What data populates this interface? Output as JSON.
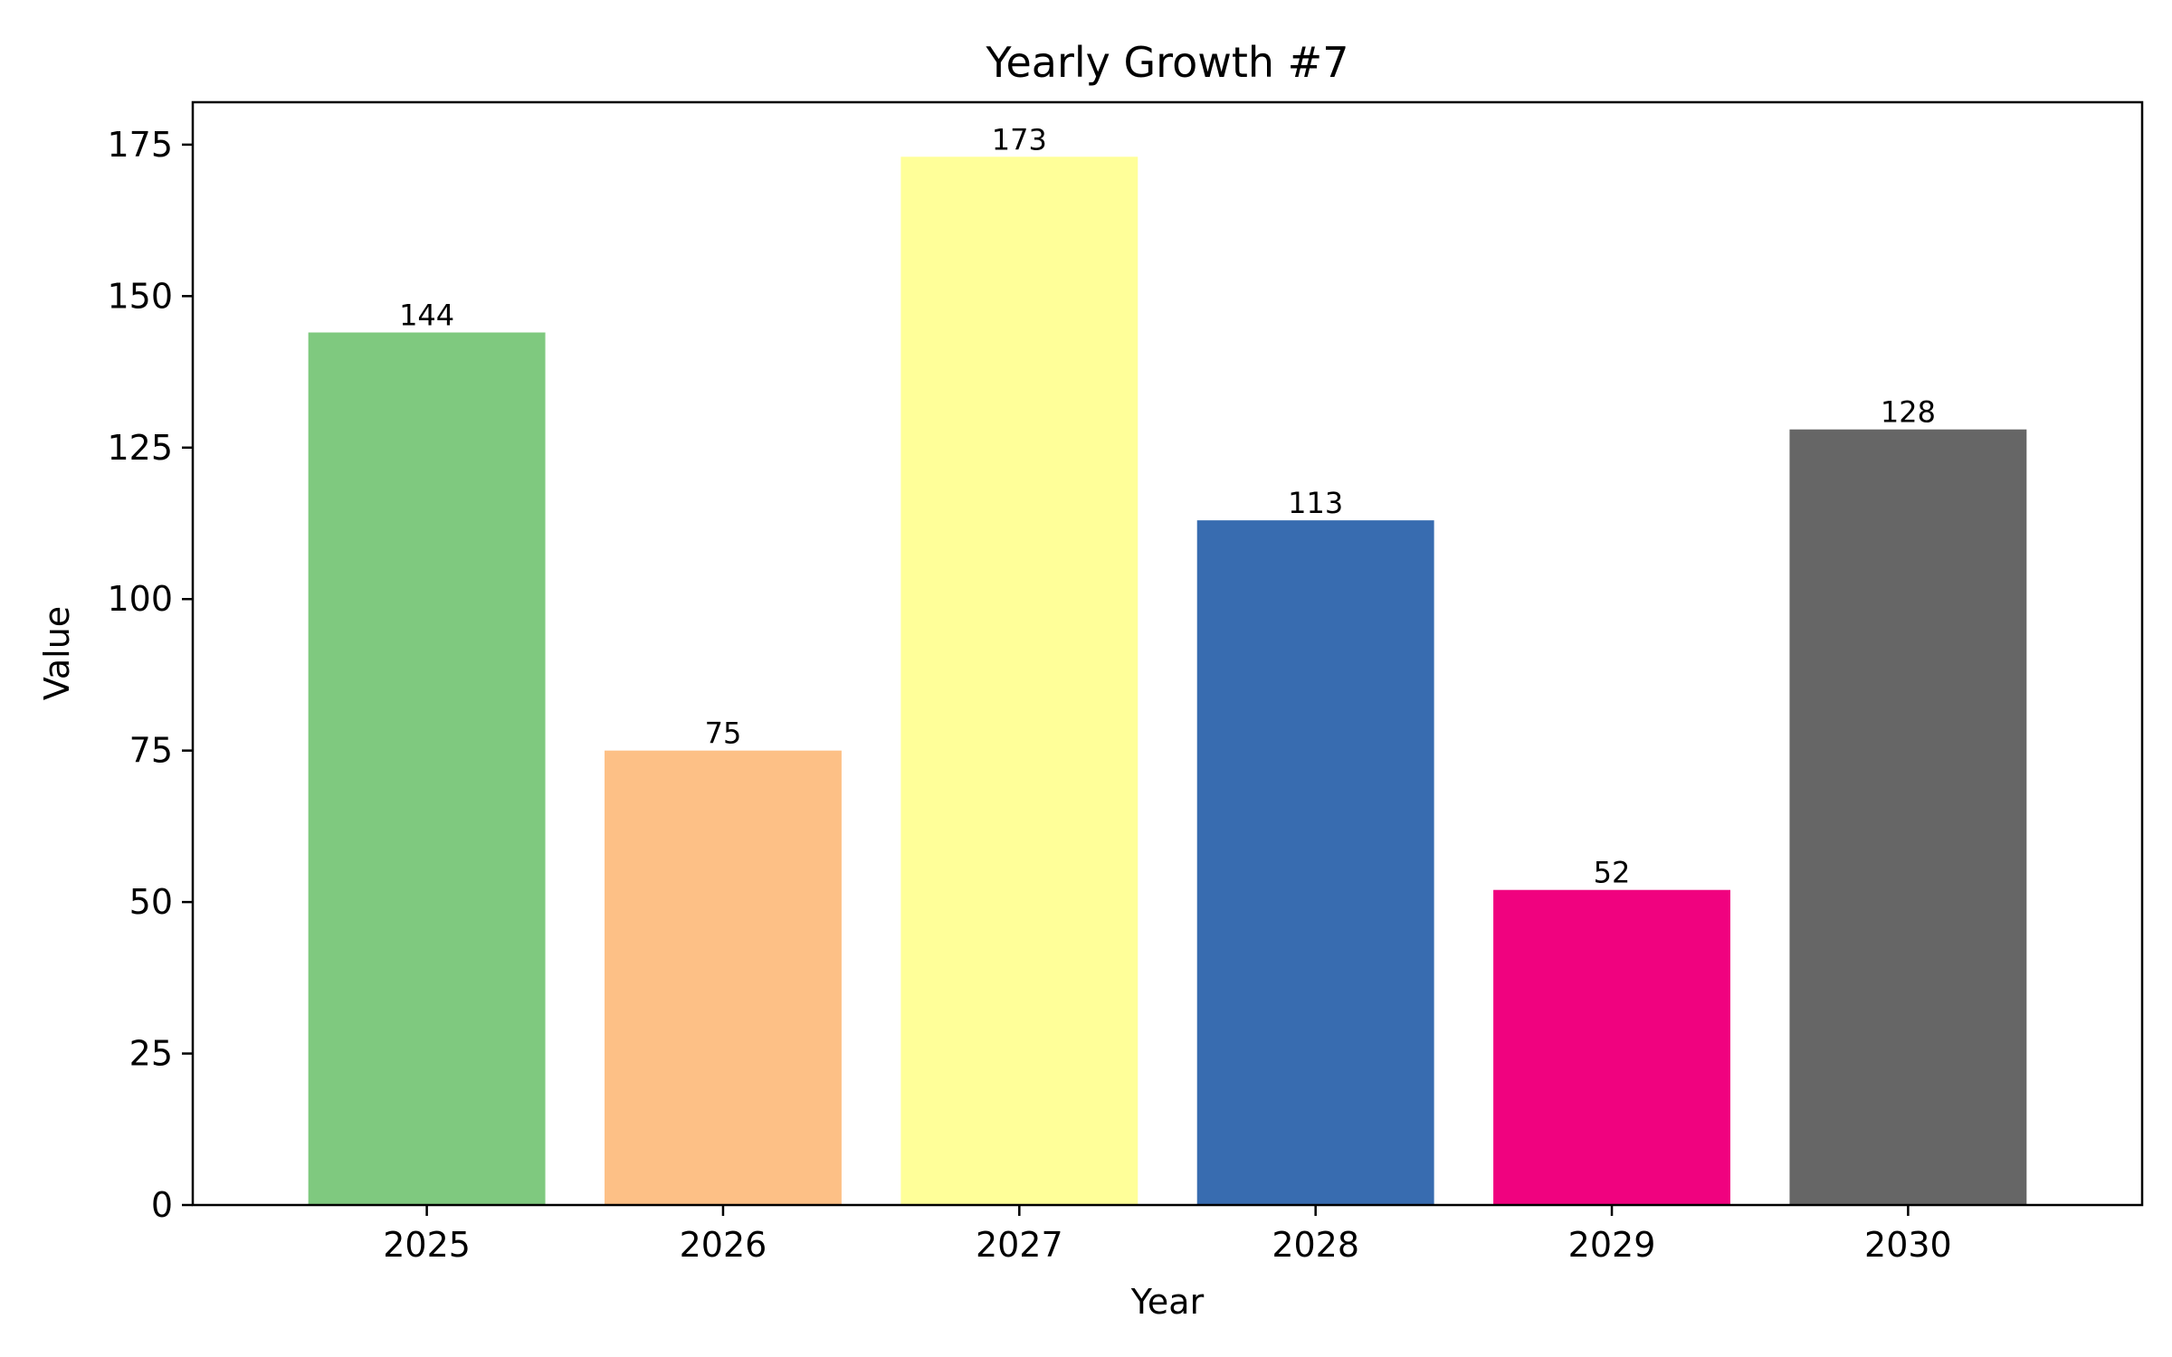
{
  "chart_data": {
    "type": "bar",
    "title": "Yearly Growth #7",
    "xlabel": "Year",
    "ylabel": "Value",
    "categories": [
      "2025",
      "2026",
      "2027",
      "2028",
      "2029",
      "2030"
    ],
    "values": [
      144,
      75,
      173,
      113,
      52,
      128
    ],
    "colors": [
      "#7fc97f",
      "#fdc086",
      "#ffff99",
      "#386cb0",
      "#f0027f",
      "#666666"
    ],
    "ylim": [
      0,
      182
    ],
    "yticks": [
      0,
      25,
      50,
      75,
      100,
      125,
      150,
      175
    ],
    "grid": false,
    "legend": null,
    "data_labels": true
  }
}
